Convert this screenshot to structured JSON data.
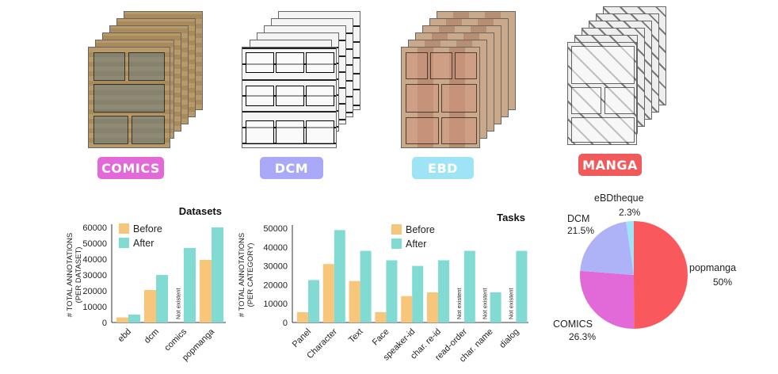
{
  "datasets_labels": {
    "comics": "COMICS",
    "dcm": "DCM",
    "ebd": "EBD",
    "manga": "MANGA"
  },
  "colors": {
    "comics": "#e26ad8",
    "dcm": "#a9a9f7",
    "ebd": "#9fe3f6",
    "manga": "#f15a5a",
    "before": "#f8c67b",
    "after": "#82dbd3",
    "pie_popmanga": "#f9585c",
    "pie_comics": "#e26ad8",
    "pie_dcm": "#aeb2f7",
    "pie_ebdtheque": "#9fe3f6"
  },
  "chart_data": [
    {
      "type": "bar",
      "title": "Datasets",
      "ylabel": "# TOTAL ANNOTATIONS\n(PER DATASET)",
      "categories": [
        "ebd",
        "dcm",
        "comics",
        "popmanga"
      ],
      "ylim": [
        0,
        60000
      ],
      "yticks": [
        0,
        10000,
        20000,
        30000,
        40000,
        50000,
        60000
      ],
      "series": [
        {
          "name": "Before",
          "values": [
            3200,
            20500,
            null,
            39500
          ]
        },
        {
          "name": "After",
          "values": [
            5000,
            30000,
            47000,
            60000
          ]
        }
      ],
      "annotations": [
        {
          "category": "comics",
          "text": "Not existent"
        }
      ],
      "legend": "top-left"
    },
    {
      "type": "bar",
      "title": "Tasks",
      "ylabel": "# TOTAL ANNOTATIONS\n(PER CATEGORY)",
      "categories": [
        "Panel",
        "Character",
        "Text",
        "Face",
        "speaker-id",
        "char. re-id",
        "read-order",
        "char. name",
        "dialog"
      ],
      "ylim": [
        0,
        50000
      ],
      "yticks": [
        0,
        10000,
        20000,
        30000,
        40000,
        50000
      ],
      "series": [
        {
          "name": "Before",
          "values": [
            5500,
            31000,
            22000,
            5500,
            14000,
            16000,
            null,
            null,
            null
          ]
        },
        {
          "name": "After",
          "values": [
            22500,
            49000,
            38000,
            33000,
            30000,
            33000,
            38000,
            16000,
            38000
          ]
        }
      ],
      "annotations": [
        {
          "category": "read-order",
          "text": "Not existent"
        },
        {
          "category": "char. name",
          "text": "Not existent"
        },
        {
          "category": "dialog",
          "text": "Not existent"
        }
      ],
      "legend": "top-center"
    },
    {
      "type": "pie",
      "slices": [
        {
          "label": "popmanga",
          "value": 50,
          "text": "50%"
        },
        {
          "label": "COMICS",
          "value": 26.3,
          "text": "26.3%"
        },
        {
          "label": "DCM",
          "value": 21.5,
          "text": "21.5%"
        },
        {
          "label": "eBDtheque",
          "value": 2.3,
          "text": "2.3%"
        }
      ]
    }
  ]
}
